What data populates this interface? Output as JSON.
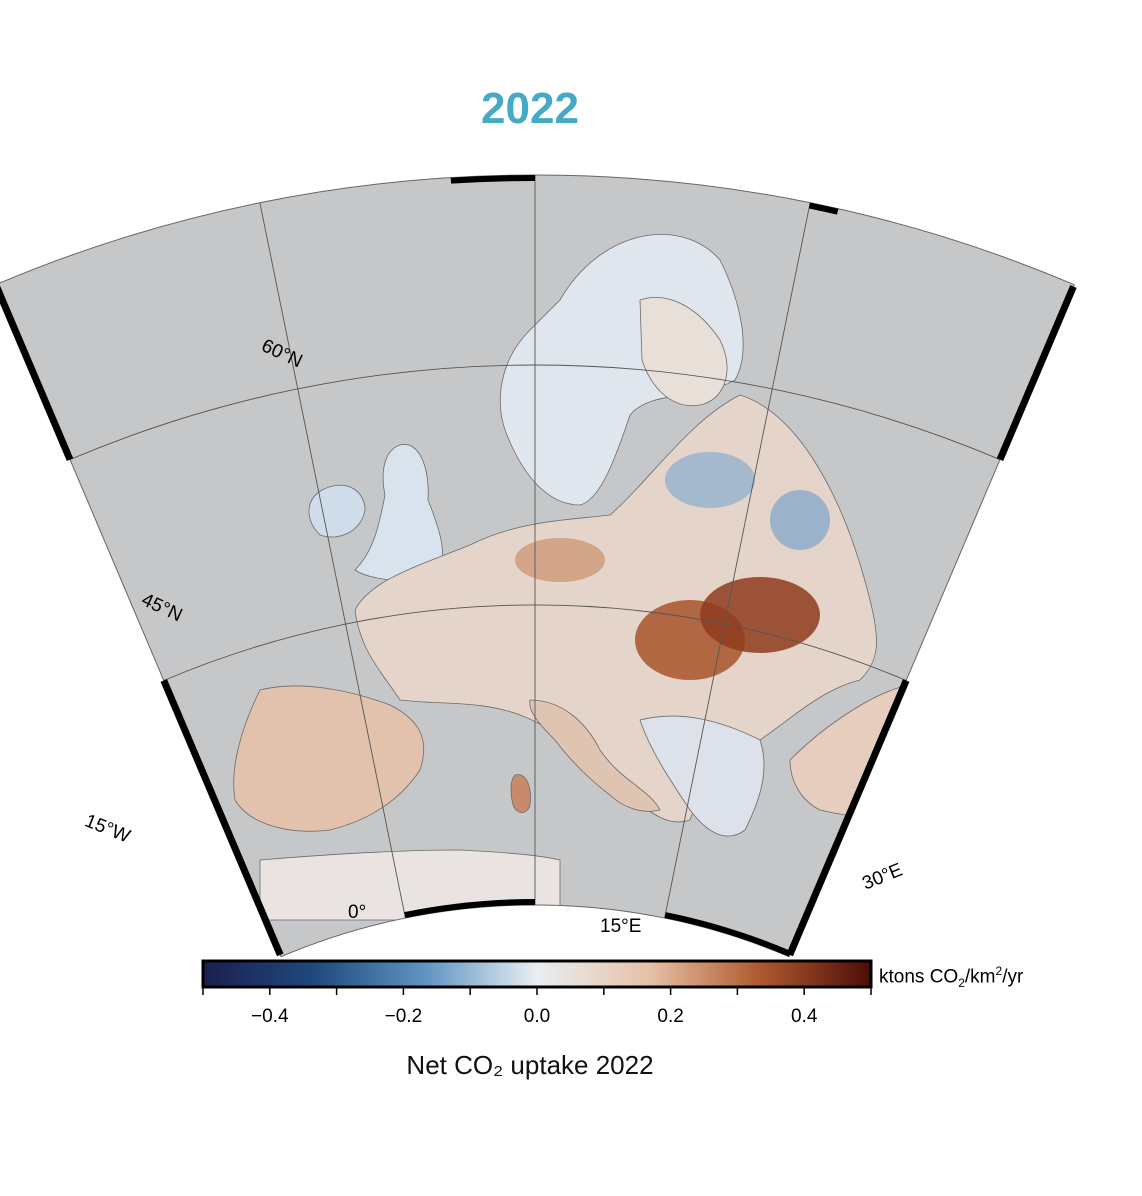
{
  "title": "2022",
  "map": {
    "background_color": "#c6c7c9",
    "graticule": {
      "lat_labels": [
        "60°N",
        "45°N"
      ],
      "lon_labels": [
        "15°W",
        "0°",
        "15°E",
        "30°E"
      ]
    }
  },
  "colorbar": {
    "min": -0.5,
    "max": 0.5,
    "ticks": [
      -0.4,
      -0.2,
      0.0,
      0.2,
      0.4
    ],
    "tick_labels": [
      "−0.4",
      "−0.2",
      "0.0",
      "0.2",
      "0.4"
    ],
    "unit_main": "ktons CO",
    "unit_sub1": "2",
    "unit_mid": "/km",
    "unit_sup": "2",
    "unit_end": "/yr",
    "colors": [
      "#1b1f4f",
      "#1e4a7e",
      "#5f95c2",
      "#e9eef2",
      "#e6c2a8",
      "#b0592e",
      "#4d0d08"
    ]
  },
  "footer": "Net CO₂ uptake 2022"
}
